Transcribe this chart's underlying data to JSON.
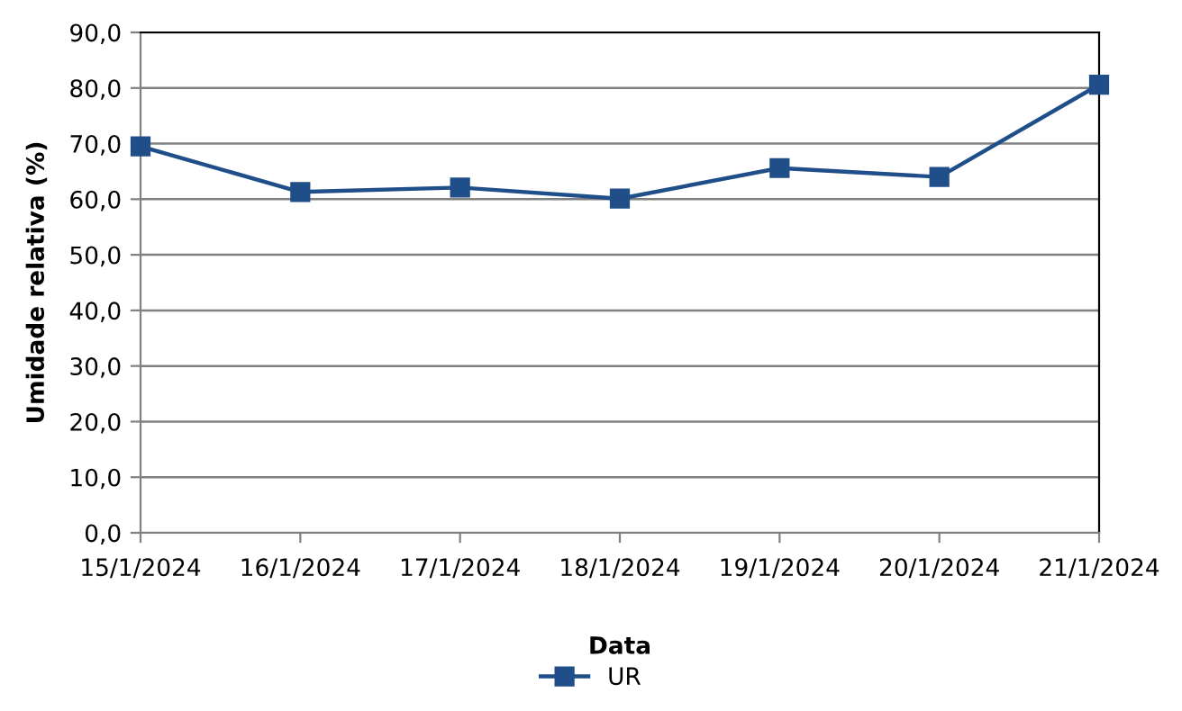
{
  "chart_data": {
    "type": "line",
    "xlabel": "Data",
    "ylabel": "Umidade relativa (%)",
    "categories": [
      "15/1/2024",
      "16/1/2024",
      "17/1/2024",
      "18/1/2024",
      "19/1/2024",
      "20/1/2024",
      "21/1/2024"
    ],
    "series": [
      {
        "name": "UR",
        "color": "#1f4e89",
        "values": [
          69.5,
          61.3,
          62.1,
          60.1,
          65.6,
          64.0,
          80.6
        ]
      }
    ],
    "ylim": [
      0,
      90
    ],
    "yticks": [
      {
        "value": 0,
        "label": "0,0"
      },
      {
        "value": 10,
        "label": "10,0"
      },
      {
        "value": 20,
        "label": "20,0"
      },
      {
        "value": 30,
        "label": "30,0"
      },
      {
        "value": 40,
        "label": "40,0"
      },
      {
        "value": 50,
        "label": "50,0"
      },
      {
        "value": 60,
        "label": "60,0"
      },
      {
        "value": 70,
        "label": "70,0"
      },
      {
        "value": 80,
        "label": "80,0"
      },
      {
        "value": 90,
        "label": "90,0"
      }
    ],
    "grid": "y",
    "legend": "bottom",
    "marker": "square",
    "line_style": "solid"
  }
}
